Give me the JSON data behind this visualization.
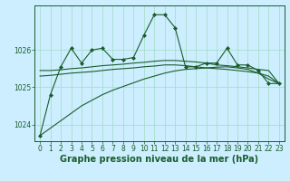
{
  "bg_color": "#cceeff",
  "grid_color": "#aaddcc",
  "line_color": "#1a5c2a",
  "xlabel": "Graphe pression niveau de la mer (hPa)",
  "xlabel_fontsize": 7,
  "tick_fontsize": 5.5,
  "xlim": [
    -0.5,
    23.5
  ],
  "ylim": [
    1023.55,
    1027.2
  ],
  "yticks": [
    1024,
    1025,
    1026
  ],
  "xticks": [
    0,
    1,
    2,
    3,
    4,
    5,
    6,
    7,
    8,
    9,
    10,
    11,
    12,
    13,
    14,
    15,
    16,
    17,
    18,
    19,
    20,
    21,
    22,
    23
  ],
  "series": [
    {
      "x": [
        0,
        1,
        2,
        3,
        4,
        5,
        6,
        7,
        8,
        9,
        10,
        11,
        12,
        13,
        14,
        15,
        16,
        17,
        18,
        19,
        20,
        21,
        22,
        23
      ],
      "y": [
        1023.7,
        1024.8,
        1025.55,
        1026.05,
        1025.65,
        1026.0,
        1026.05,
        1025.75,
        1025.75,
        1025.8,
        1026.4,
        1026.95,
        1026.95,
        1026.6,
        1025.55,
        1025.55,
        1025.65,
        1025.65,
        1026.05,
        1025.6,
        1025.6,
        1025.45,
        1025.1,
        1025.1
      ],
      "marker": "D",
      "markersize": 2.0,
      "linewidth": 0.8
    },
    {
      "x": [
        0,
        1,
        2,
        3,
        4,
        5,
        6,
        7,
        8,
        9,
        10,
        11,
        12,
        13,
        14,
        15,
        16,
        17,
        18,
        19,
        20,
        21,
        22,
        23
      ],
      "y": [
        1025.45,
        1025.45,
        1025.47,
        1025.5,
        1025.52,
        1025.55,
        1025.58,
        1025.6,
        1025.62,
        1025.65,
        1025.67,
        1025.7,
        1025.72,
        1025.72,
        1025.7,
        1025.68,
        1025.65,
        1025.6,
        1025.58,
        1025.55,
        1025.52,
        1025.48,
        1025.45,
        1025.1
      ],
      "marker": null,
      "markersize": 0,
      "linewidth": 0.8
    },
    {
      "x": [
        0,
        1,
        2,
        3,
        4,
        5,
        6,
        7,
        8,
        9,
        10,
        11,
        12,
        13,
        14,
        15,
        16,
        17,
        18,
        19,
        20,
        21,
        22,
        23
      ],
      "y": [
        1025.3,
        1025.32,
        1025.35,
        1025.38,
        1025.4,
        1025.42,
        1025.45,
        1025.48,
        1025.5,
        1025.52,
        1025.55,
        1025.57,
        1025.6,
        1025.6,
        1025.58,
        1025.55,
        1025.52,
        1025.5,
        1025.48,
        1025.45,
        1025.42,
        1025.38,
        1025.3,
        1025.1
      ],
      "marker": null,
      "markersize": 0,
      "linewidth": 0.8
    },
    {
      "x": [
        0,
        1,
        2,
        3,
        4,
        5,
        6,
        7,
        8,
        9,
        10,
        11,
        12,
        13,
        14,
        15,
        16,
        17,
        18,
        19,
        20,
        21,
        22,
        23
      ],
      "y": [
        1023.7,
        1023.9,
        1024.1,
        1024.3,
        1024.5,
        1024.65,
        1024.8,
        1024.92,
        1025.02,
        1025.12,
        1025.22,
        1025.3,
        1025.38,
        1025.44,
        1025.48,
        1025.5,
        1025.52,
        1025.54,
        1025.55,
        1025.52,
        1025.48,
        1025.38,
        1025.22,
        1025.1
      ],
      "marker": null,
      "markersize": 0,
      "linewidth": 0.8
    }
  ]
}
